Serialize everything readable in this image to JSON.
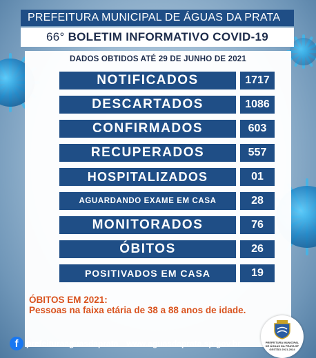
{
  "header": {
    "title": "PREFEITURA MUNICIPAL DE ÁGUAS DA PRATA SP",
    "bulletin_number": "66°",
    "bulletin_title": "BOLETIM INFORMATIVO COVID-19"
  },
  "date_line": "DADOS OBTIDOS ATÉ 29 DE JUNHO DE 2021",
  "stats": [
    {
      "label": "NOTIFICADOS",
      "value": "1717"
    },
    {
      "label": "DESCARTADOS",
      "value": "1086"
    },
    {
      "label": "CONFIRMADOS",
      "value": "603"
    },
    {
      "label": "RECUPERADOS",
      "value": "557"
    },
    {
      "label": "HOSPITALIZADOS",
      "value": "01"
    },
    {
      "label": "AGUARDANDO EXAME EM CASA",
      "value": "28"
    },
    {
      "label": "MONITORADOS",
      "value": "76"
    },
    {
      "label": "ÓBITOS",
      "value": "26"
    },
    {
      "label": "POSITIVADOS EM CASA",
      "value": "19"
    }
  ],
  "deaths_note": {
    "title": "ÓBITOS EM 2021:",
    "text": "Pessoas na faixa etária de 38 a 88 anos de idade."
  },
  "footer": {
    "facebook_icon": "facebook-icon",
    "facebook_handle": "prefeituraaguasdaprata",
    "website": "www.aguasdaprata.sp.gov.br"
  },
  "seal": {
    "icon": "municipal-crest",
    "text_line1": "PREFEITURA MUNICIPAL",
    "text_line2": "DE ÁGUAS DA PRATA SP",
    "text_line3": "GESTÃO 2021-2024"
  },
  "colors": {
    "brand_blue": "#1f4e86",
    "note_orange": "#d9531e",
    "facebook_blue": "#1877f2"
  }
}
